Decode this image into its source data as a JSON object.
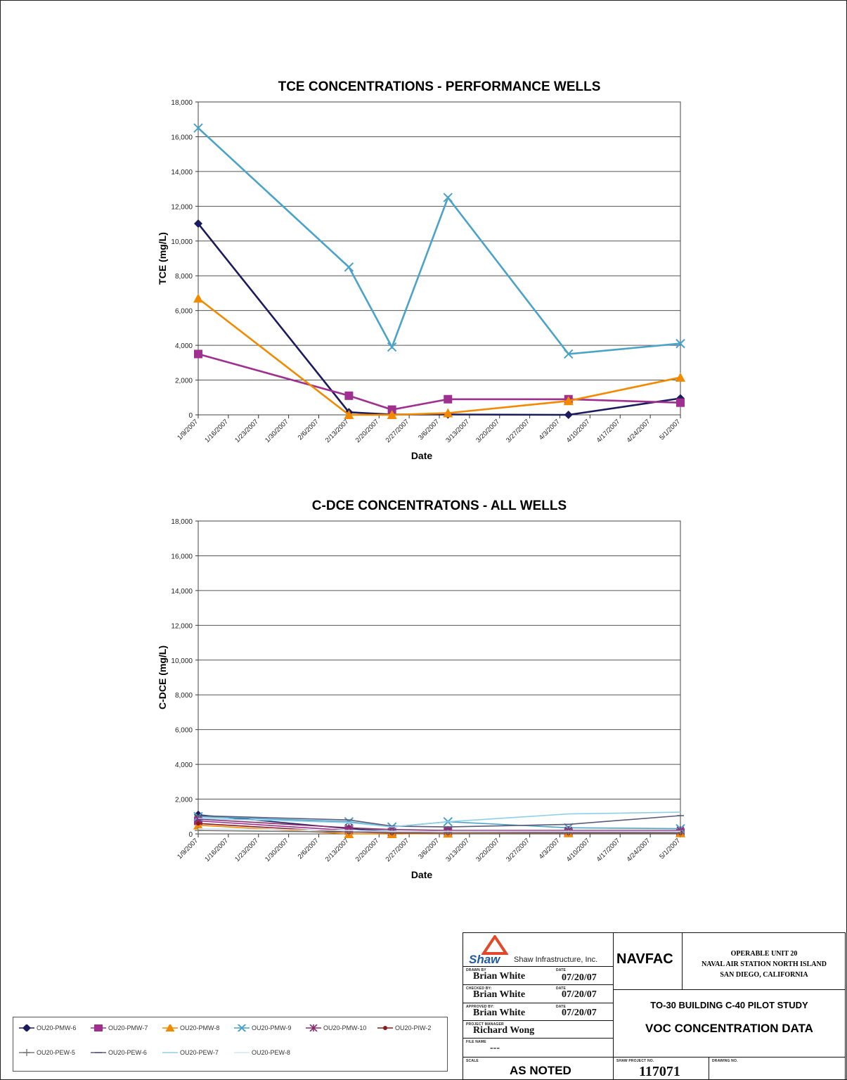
{
  "chart_data": [
    {
      "type": "line",
      "title": "TCE CONCENTRATIONS - PERFORMANCE WELLS",
      "xlabel": "Date",
      "ylabel": "TCE  (mg/L)",
      "ylim": [
        0,
        18000
      ],
      "yticks": [
        "0",
        "2,000",
        "4,000",
        "6,000",
        "8,000",
        "10,000",
        "12,000",
        "14,000",
        "16,000",
        "18,000"
      ],
      "x_ticks": [
        "1/9/2007",
        "1/16/2007",
        "1/23/2007",
        "1/30/2007",
        "2/6/2007",
        "2/13/2007",
        "2/20/2007",
        "2/27/2007",
        "3/6/2007",
        "3/13/2007",
        "3/20/2007",
        "3/27/2007",
        "4/3/2007",
        "4/10/2007",
        "4/17/2007",
        "4/24/2007",
        "5/1/2007"
      ],
      "grid": true,
      "series": [
        {
          "name": "OU20-PMW-6",
          "color": "#1b1b5e",
          "marker": "diamond",
          "points": [
            [
              "1/9/2007",
              11000
            ],
            [
              "2/13/2007",
              150
            ],
            [
              "2/23/2007",
              20
            ],
            [
              "3/8/2007",
              20
            ],
            [
              "4/5/2007",
              0
            ],
            [
              "5/1/2007",
              950
            ]
          ]
        },
        {
          "name": "OU20-PMW-7",
          "color": "#a0308f",
          "marker": "square",
          "points": [
            [
              "1/9/2007",
              3500
            ],
            [
              "2/13/2007",
              1100
            ],
            [
              "2/23/2007",
              300
            ],
            [
              "3/8/2007",
              900
            ],
            [
              "4/5/2007",
              900
            ],
            [
              "5/1/2007",
              700
            ]
          ]
        },
        {
          "name": "OU20-PMW-8",
          "color": "#f28a00",
          "marker": "triangle",
          "points": [
            [
              "1/9/2007",
              6700
            ],
            [
              "2/13/2007",
              0
            ],
            [
              "2/23/2007",
              0
            ],
            [
              "3/8/2007",
              100
            ],
            [
              "4/5/2007",
              800
            ],
            [
              "5/1/2007",
              2150
            ]
          ]
        },
        {
          "name": "OU20-PMW-9",
          "color": "#4aa3c8",
          "marker": "x",
          "points": [
            [
              "1/9/2007",
              16500
            ],
            [
              "2/13/2007",
              8500
            ],
            [
              "2/23/2007",
              3900
            ],
            [
              "3/8/2007",
              12500
            ],
            [
              "4/5/2007",
              3500
            ],
            [
              "5/1/2007",
              4100
            ]
          ]
        }
      ]
    },
    {
      "type": "line",
      "title": "C-DCE CONCENTRATONS - ALL WELLS",
      "xlabel": "Date",
      "ylabel": "C-DCE  (mg/L)",
      "ylim": [
        0,
        18000
      ],
      "yticks": [
        "0",
        "2,000",
        "4,000",
        "6,000",
        "8,000",
        "10,000",
        "12,000",
        "14,000",
        "16,000",
        "18,000"
      ],
      "x_ticks": [
        "1/9/2007",
        "1/16/2007",
        "1/23/2007",
        "1/30/2007",
        "2/6/2007",
        "2/13/2007",
        "2/20/2007",
        "2/27/2007",
        "3/6/2007",
        "3/13/2007",
        "3/20/2007",
        "3/27/2007",
        "4/3/2007",
        "4/10/2007",
        "4/17/2007",
        "4/24/2007",
        "5/1/2007"
      ],
      "grid": true,
      "series": [
        {
          "name": "OU20-PMW-6",
          "color": "#1b1b5e",
          "marker": "diamond",
          "points": [
            [
              "1/9/2007",
              1100
            ],
            [
              "2/13/2007",
              300
            ],
            [
              "2/23/2007",
              150
            ],
            [
              "3/8/2007",
              150
            ],
            [
              "4/5/2007",
              150
            ],
            [
              "5/1/2007",
              150
            ]
          ]
        },
        {
          "name": "OU20-PMW-7",
          "color": "#a0308f",
          "marker": "square",
          "points": [
            [
              "1/9/2007",
              750
            ],
            [
              "2/13/2007",
              200
            ],
            [
              "2/23/2007",
              100
            ],
            [
              "3/8/2007",
              150
            ],
            [
              "4/5/2007",
              100
            ],
            [
              "5/1/2007",
              80
            ]
          ]
        },
        {
          "name": "OU20-PMW-8",
          "color": "#f28a00",
          "marker": "triangle",
          "points": [
            [
              "1/9/2007",
              500
            ],
            [
              "2/13/2007",
              0
            ],
            [
              "2/23/2007",
              0
            ],
            [
              "3/8/2007",
              30
            ],
            [
              "4/5/2007",
              50
            ],
            [
              "5/1/2007",
              50
            ]
          ]
        },
        {
          "name": "OU20-PMW-9",
          "color": "#4aa3c8",
          "marker": "x",
          "points": [
            [
              "1/9/2007",
              1000
            ],
            [
              "2/13/2007",
              700
            ],
            [
              "2/23/2007",
              400
            ],
            [
              "3/8/2007",
              700
            ],
            [
              "4/5/2007",
              350
            ],
            [
              "5/1/2007",
              300
            ]
          ]
        },
        {
          "name": "OU20-PMW-10",
          "color": "#8b2c6e",
          "marker": "star",
          "points": [
            [
              "1/9/2007",
              850
            ],
            [
              "2/13/2007",
              350
            ],
            [
              "2/23/2007",
              250
            ],
            [
              "3/8/2007",
              200
            ],
            [
              "4/5/2007",
              200
            ],
            [
              "5/1/2007",
              200
            ]
          ]
        },
        {
          "name": "OU20-PIW-2",
          "color": "#8b1a1a",
          "marker": "dot",
          "points": [
            [
              "1/9/2007",
              600
            ],
            [
              "2/13/2007",
              100
            ],
            [
              "2/23/2007",
              50
            ],
            [
              "3/8/2007",
              50
            ],
            [
              "4/5/2007",
              50
            ],
            [
              "5/1/2007",
              50
            ]
          ]
        },
        {
          "name": "OU20-PEW-5",
          "color": "#7a7a7a",
          "marker": "plus",
          "points": [
            [
              "1/9/2007",
              200
            ],
            [
              "2/13/2007",
              100
            ],
            [
              "2/23/2007",
              80
            ],
            [
              "3/8/2007",
              60
            ],
            [
              "4/5/2007",
              60
            ],
            [
              "5/1/2007",
              60
            ]
          ]
        },
        {
          "name": "OU20-PEW-6",
          "color": "#5b5b7a",
          "marker": "dash",
          "points": [
            [
              "1/9/2007",
              1050
            ],
            [
              "2/13/2007",
              800
            ],
            [
              "2/23/2007",
              450
            ],
            [
              "3/8/2007",
              400
            ],
            [
              "4/5/2007",
              550
            ],
            [
              "5/1/2007",
              1050
            ]
          ]
        },
        {
          "name": "OU20-PEW-7",
          "color": "#8fd0e8",
          "marker": "none",
          "points": [
            [
              "1/9/2007",
              900
            ],
            [
              "2/13/2007",
              650
            ],
            [
              "2/23/2007",
              400
            ],
            [
              "3/8/2007",
              700
            ],
            [
              "4/5/2007",
              1150
            ],
            [
              "5/1/2007",
              1250
            ]
          ]
        },
        {
          "name": "OU20-PEW-8",
          "color": "#cfe8f2",
          "marker": "none",
          "points": [
            [
              "1/9/2007",
              300
            ],
            [
              "2/13/2007",
              200
            ],
            [
              "2/23/2007",
              150
            ],
            [
              "3/8/2007",
              150
            ],
            [
              "4/5/2007",
              150
            ],
            [
              "5/1/2007",
              150
            ]
          ]
        }
      ]
    }
  ],
  "legend": [
    "OU20-PMW-6",
    "OU20-PMW-7",
    "OU20-PMW-8",
    "OU20-PMW-9",
    "OU20-PMW-10",
    "OU20-PIW-2",
    "OU20-PEW-5",
    "OU20-PEW-6",
    "OU20-PEW-7",
    "OU20-PEW-8"
  ],
  "title_block": {
    "company": "Shaw Infrastructure, Inc.",
    "logo_text": "Shaw",
    "drawn_by_label": "DRAWN BY",
    "drawn_by": "Brian White",
    "drawn_date_label": "DATE",
    "drawn_date": "07/20/07",
    "checked_by_label": "CHECKED BY:",
    "checked_by": "Brian White",
    "checked_date_label": "DATE",
    "checked_date": "07/20/07",
    "approved_by_label": "APPROVED BY:",
    "approved_by": "Brian White",
    "approved_date_label": "DATE",
    "approved_date": "07/20/07",
    "pm_label": "PROJECT MANAGER",
    "pm": "Richard Wong",
    "file_label": "FILE NAME",
    "file_name": "---",
    "scale_label": "SCALE",
    "scale": "AS NOTED",
    "client": "NAVFAC",
    "location_line1": "OPERABLE UNIT 20",
    "location_line2": "NAVAL AIR STATION NORTH ISLAND",
    "location_line3": "SAN DIEGO, CALIFORNIA",
    "study": "TO-30 BUILDING C-40 PILOT STUDY",
    "drawing_title": "VOC CONCENTRATION DATA",
    "project_no_label": "SHAW PROJECT NO.",
    "project_no": "117071",
    "drawing_no_label": "DRAWING NO."
  }
}
